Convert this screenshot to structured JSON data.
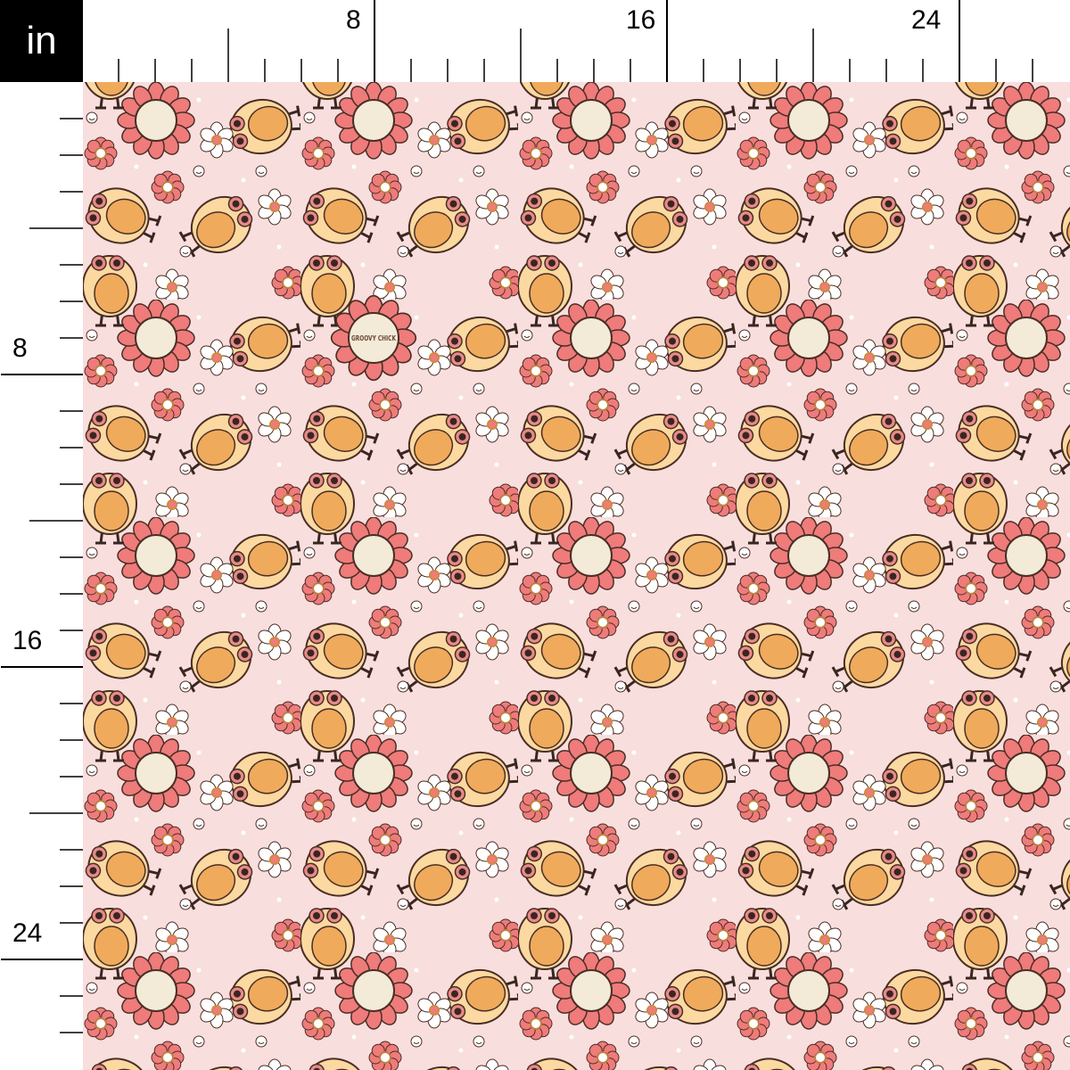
{
  "unit_label": "in",
  "top_ruler": {
    "labels": [
      "8",
      "16",
      "24"
    ]
  },
  "left_ruler": {
    "labels": [
      "8",
      "16",
      "24"
    ]
  },
  "fabric": {
    "motif_text": "GROOVY CHICK",
    "colors": {
      "background": "#f9dede",
      "chick_body": "#fbd9a0",
      "chick_belly": "#f0aa5c",
      "petal_pink": "#ef7b7b",
      "outline": "#4a2e24",
      "white_flower": "#ffffff"
    }
  }
}
